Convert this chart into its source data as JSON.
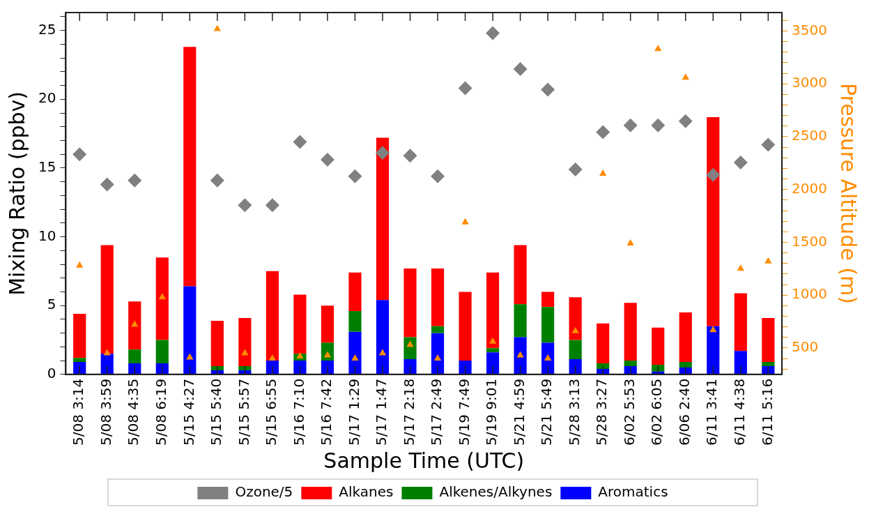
{
  "chart_data": {
    "type": "bar",
    "stacked": true,
    "xlabel": "Sample Time (UTC)",
    "ylabel": "Mixing Ratio (ppbv)",
    "y2label": "Pressure Altitude (m)",
    "categories": [
      "5/08 3:14",
      "5/08 3:59",
      "5/08 4:35",
      "5/08 6:19",
      "5/15 4:27",
      "5/15 5:40",
      "5/15 5:57",
      "5/15 6:55",
      "5/16 7:10",
      "5/16 7:42",
      "5/17 1:29",
      "5/17 1:47",
      "5/17 2:18",
      "5/17 2:49",
      "5/19 7:49",
      "5/19 9:01",
      "5/21 4:59",
      "5/21 5:49",
      "5/28 3:13",
      "5/28 3:27",
      "6/02 5:53",
      "6/02 6:05",
      "6/06 2:40",
      "6/11 3:41",
      "6/11 4:38",
      "6/11 5:16"
    ],
    "series": [
      {
        "name": "Ozone/5",
        "type": "scatter",
        "marker": "diamond",
        "color": "#808080",
        "values": [
          16.0,
          13.8,
          14.1,
          null,
          null,
          14.1,
          12.3,
          12.3,
          16.9,
          15.6,
          14.4,
          16.1,
          15.9,
          14.4,
          20.8,
          24.8,
          22.2,
          20.7,
          14.9,
          17.6,
          18.1,
          18.1,
          18.4,
          14.5,
          15.4,
          16.7
        ]
      },
      {
        "name": "Aromatics",
        "color": "#0000ff",
        "values": [
          0.9,
          1.5,
          0.8,
          0.8,
          6.4,
          0.3,
          0.3,
          1.0,
          1.0,
          1.0,
          3.1,
          5.4,
          1.1,
          3.0,
          1.0,
          1.6,
          2.7,
          2.3,
          1.1,
          0.4,
          0.6,
          0.2,
          0.5,
          3.5,
          1.7,
          0.6
        ]
      },
      {
        "name": "Alkenes/Alkynes",
        "color": "#008000",
        "values": [
          0.3,
          0,
          1.0,
          1.7,
          0,
          0.3,
          0.3,
          0,
          0.5,
          1.3,
          1.5,
          0,
          1.6,
          0.5,
          0,
          0.3,
          2.4,
          2.6,
          1.4,
          0.4,
          0.4,
          0.5,
          0.4,
          0,
          0,
          0.3
        ]
      },
      {
        "name": "Alkanes",
        "color": "#ff0000",
        "values": [
          3.2,
          7.9,
          3.5,
          6.0,
          17.4,
          3.3,
          3.5,
          6.5,
          4.3,
          2.7,
          2.8,
          11.8,
          5.0,
          4.2,
          5.0,
          5.5,
          4.3,
          1.1,
          3.1,
          2.9,
          4.2,
          2.7,
          3.6,
          15.2,
          4.2,
          3.2
        ]
      },
      {
        "type": "scatter",
        "marker": "triangle",
        "axis": "y2",
        "color": "#ff8c00",
        "values": [
          1280,
          450,
          720,
          980,
          410,
          3520,
          450,
          400,
          420,
          430,
          400,
          450,
          530,
          400,
          1690,
          560,
          430,
          400,
          660,
          2150,
          1490,
          3330,
          3060,
          670,
          1250,
          1320
        ]
      }
    ],
    "ylim": [
      0,
      26.3
    ],
    "yticks": [
      0,
      {
        "value": 1,
        "label": null
      },
      {
        "value": 2,
        "label": null
      },
      {
        "value": 3,
        "label": null
      },
      {
        "value": 4,
        "label": null
      },
      5,
      {
        "value": 6,
        "label": null
      },
      {
        "value": 7,
        "label": null
      },
      {
        "value": 8,
        "label": null
      },
      {
        "value": 9,
        "label": null
      },
      10,
      {
        "value": 11,
        "label": null
      },
      {
        "value": 12,
        "label": null
      },
      {
        "value": 13,
        "label": null
      },
      {
        "value": 14,
        "label": null
      },
      15,
      {
        "value": 16,
        "label": null
      },
      {
        "value": 17,
        "label": null
      },
      {
        "value": 18,
        "label": null
      },
      {
        "value": 19,
        "label": null
      },
      20,
      {
        "value": 21,
        "label": null
      },
      {
        "value": 22,
        "label": null
      },
      {
        "value": 23,
        "label": null
      },
      {
        "value": 24,
        "label": null
      },
      25,
      {
        "value": 26,
        "label": null
      }
    ],
    "y2lim": [
      250,
      3675
    ],
    "y2ticks": [
      {
        "value": 300,
        "label": null
      },
      {
        "value": 400,
        "label": null
      },
      500,
      {
        "value": 600,
        "label": null
      },
      {
        "value": 700,
        "label": null
      },
      {
        "value": 800,
        "label": null
      },
      {
        "value": 900,
        "label": null
      },
      1000,
      {
        "value": 1100,
        "label": null
      },
      {
        "value": 1200,
        "label": null
      },
      {
        "value": 1300,
        "label": null
      },
      {
        "value": 1400,
        "label": null
      },
      1500,
      {
        "value": 1600,
        "label": null
      },
      {
        "value": 1700,
        "label": null
      },
      {
        "value": 1800,
        "label": null
      },
      {
        "value": 1900,
        "label": null
      },
      2000,
      {
        "value": 2100,
        "label": null
      },
      {
        "value": 2200,
        "label": null
      },
      {
        "value": 2300,
        "label": null
      },
      {
        "value": 2400,
        "label": null
      },
      2500,
      {
        "value": 2600,
        "label": null
      },
      {
        "value": 2700,
        "label": null
      },
      {
        "value": 2800,
        "label": null
      },
      {
        "value": 2900,
        "label": null
      },
      3000,
      {
        "value": 3100,
        "label": null
      },
      {
        "value": 3200,
        "label": null
      },
      {
        "value": 3300,
        "label": null
      },
      {
        "value": 3400,
        "label": null
      },
      3500,
      {
        "value": 3600,
        "label": null
      }
    ],
    "grid": false,
    "legend": "bottom"
  }
}
